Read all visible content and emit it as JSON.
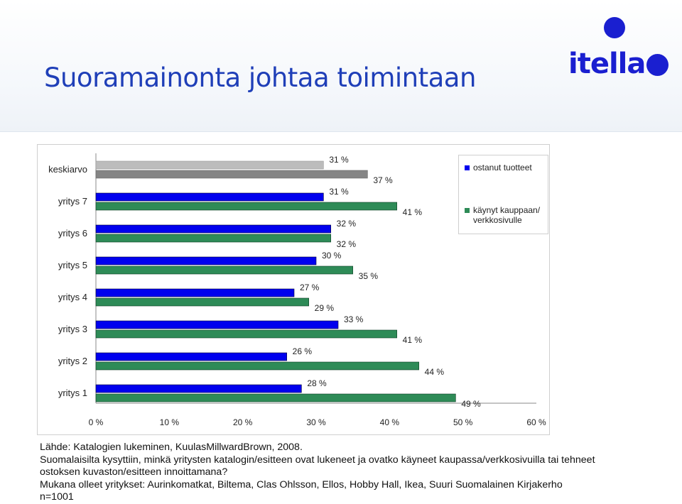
{
  "page": {
    "title": "Suoramainonta johtaa toimintaan",
    "logo_text": "itella"
  },
  "colors": {
    "title": "#1f3fb8",
    "brand": "#1a1fd0",
    "series_blue": "#0000ee",
    "series_green": "#2e8b57",
    "average_light": "#bcbcbc",
    "average_dark": "#858585"
  },
  "notes": {
    "source": "Lähde: Katalogien lukeminen, KuulasMillwardBrown, 2008.",
    "question_line1": "Suomalaisilta kysyttiin, minkä yritysten katalogin/esitteen ovat lukeneet ja ovatko käyneet kaupassa/verkkosivuilla tai tehneet",
    "question_line2": "ostoksen kuvaston/esitteen innoittamana?",
    "companies": "Mukana olleet yritykset: Aurinkomatkat, Biltema, Clas Ohlsson, Ellos, Hobby Hall, Ikea, Suuri Suomalainen Kirjakerho",
    "sample": "n=1001"
  },
  "chart_data": {
    "type": "bar",
    "orientation": "horizontal",
    "categories": [
      "keskiarvo",
      "yritys 7",
      "yritys 6",
      "yritys 5",
      "yritys 4",
      "yritys 3",
      "yritys 2",
      "yritys 1"
    ],
    "series": [
      {
        "name": "ostanut tuotteet",
        "values": [
          31,
          31,
          32,
          30,
          27,
          33,
          26,
          28
        ]
      },
      {
        "name": "käynyt kauppaan/ verkkosivulle",
        "values": [
          37,
          41,
          32,
          35,
          29,
          41,
          44,
          49
        ]
      }
    ],
    "value_labels": [
      [
        "31 %",
        "37 %"
      ],
      [
        "31 %",
        "41 %"
      ],
      [
        "32 %",
        "32 %"
      ],
      [
        "30 %",
        "35 %"
      ],
      [
        "27 %",
        "29 %"
      ],
      [
        "33 %",
        "41 %"
      ],
      [
        "26 %",
        "44 %"
      ],
      [
        "28 %",
        "49 %"
      ]
    ],
    "x_ticks": [
      "0 %",
      "10 %",
      "20 %",
      "30 %",
      "40 %",
      "50 %",
      "60 %"
    ],
    "xlim": [
      0,
      60
    ],
    "legend": [
      "ostanut tuotteet",
      "käynyt kauppaan/ verkkosivulle"
    ],
    "legend_position": "top-right",
    "grid": false
  }
}
